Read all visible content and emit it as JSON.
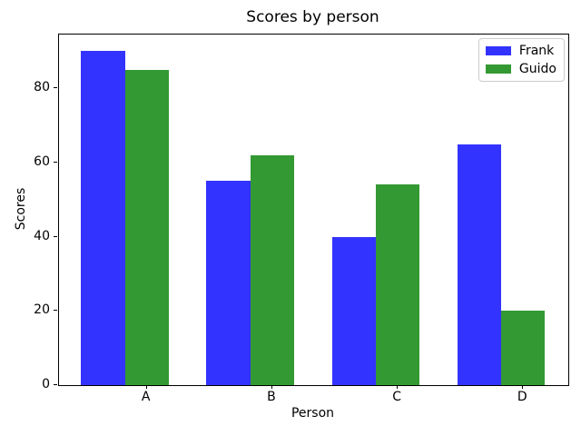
{
  "chart_data": {
    "type": "bar",
    "title": "Scores by person",
    "xlabel": "Person",
    "ylabel": "Scores",
    "categories": [
      "A",
      "B",
      "C",
      "D"
    ],
    "series": [
      {
        "name": "Frank",
        "color": "#3333ff",
        "values": [
          90,
          55,
          40,
          65
        ]
      },
      {
        "name": "Guido",
        "color": "#339933",
        "values": [
          85,
          62,
          54,
          20
        ]
      }
    ],
    "yticks": [
      0,
      20,
      40,
      60,
      80
    ],
    "ylim": [
      0,
      94.5
    ],
    "xlim": [
      -0.35,
      3.71
    ],
    "bar_width": 0.35,
    "tick_offset": 0.35,
    "grid": false,
    "legend_position": "upper right"
  },
  "colors": {
    "background": "#ffffff",
    "spine": "#000000",
    "text": "#000000",
    "legend_border": "#cccccc"
  }
}
